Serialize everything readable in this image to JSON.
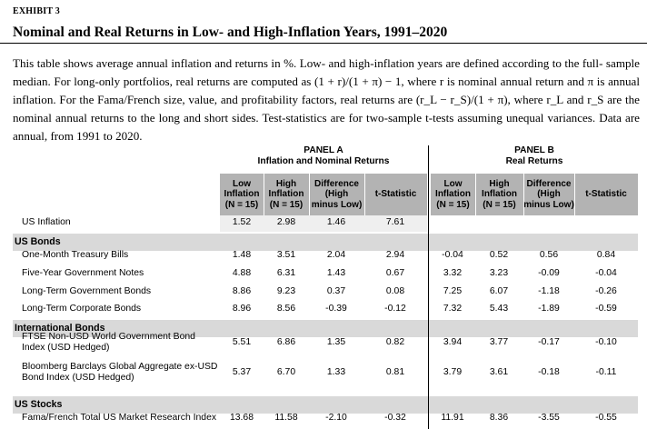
{
  "exhibit_label": "EXHIBIT 3",
  "title": "Nominal and Real Returns in Low- and High-Inflation Years, 1991–2020",
  "caption_lines": [
    "This table shows average annual inflation and returns in %. Low- and high-inflation years are defined according to the full-",
    "sample median. For long-only portfolios, real returns are computed as (1 + r)/(1 + π) − 1, where r is nominal annual",
    "return and π is annual inflation. For the Fama/French size, value, and profitability factors, real returns are (r_L − r_S)/(1 + π),",
    "where r_L and r_S are the nominal annual returns to the long and short sides. Test-statistics are for two-sample t-tests assuming",
    "unequal variances. Data are annual, from 1991 to 2020."
  ],
  "panel_a": {
    "label": "PANEL A",
    "subtitle": "Inflation and Nominal Returns"
  },
  "panel_b": {
    "label": "PANEL B",
    "subtitle": "Real Returns"
  },
  "columns_a": [
    "Low\nInflation\n(N = 15)",
    "High\nInflation\n(N = 15)",
    "Difference\n(High\nminus Low)",
    "t-Statistic"
  ],
  "columns_b": [
    "Low\nInflation\n(N = 15)",
    "High\nInflation\n(N = 15)",
    "Difference\n(High\nminus Low)",
    "t-Statistic"
  ],
  "us_inflation": {
    "label": "US Inflation",
    "values": [
      "1.52",
      "2.98",
      "1.46",
      "7.61"
    ]
  },
  "sections": [
    {
      "name": "US Bonds",
      "rows": [
        {
          "label": "One-Month Treasury Bills",
          "a": [
            "1.48",
            "3.51",
            "2.04",
            "2.94"
          ],
          "b": [
            "-0.04",
            "0.52",
            "0.56",
            "0.84"
          ]
        },
        {
          "label": "Five-Year Government Notes",
          "a": [
            "4.88",
            "6.31",
            "1.43",
            "0.67"
          ],
          "b": [
            "3.32",
            "3.23",
            "-0.09",
            "-0.04"
          ]
        },
        {
          "label": "Long-Term Government Bonds",
          "a": [
            "8.86",
            "9.23",
            "0.37",
            "0.08"
          ],
          "b": [
            "7.25",
            "6.07",
            "-1.18",
            "-0.26"
          ]
        },
        {
          "label": "Long-Term Corporate Bonds",
          "a": [
            "8.96",
            "8.56",
            "-0.39",
            "-0.12"
          ],
          "b": [
            "7.32",
            "5.43",
            "-1.89",
            "-0.59"
          ]
        }
      ]
    },
    {
      "name": "International Bonds",
      "rows": [
        {
          "label": "FTSE Non-USD World Government Bond\nIndex (USD Hedged)",
          "a": [
            "5.51",
            "6.86",
            "1.35",
            "0.82"
          ],
          "b": [
            "3.94",
            "3.77",
            "-0.17",
            "-0.10"
          ]
        },
        {
          "label": "Bloomberg Barclays Global Aggregate ex-USD\nBond Index (USD Hedged)",
          "a": [
            "5.37",
            "6.70",
            "1.33",
            "0.81"
          ],
          "b": [
            "3.79",
            "3.61",
            "-0.18",
            "-0.11"
          ]
        }
      ]
    },
    {
      "name": "US Stocks",
      "rows": [
        {
          "label": "Fama/French Total US Market Research Index",
          "a": [
            "13.68",
            "11.58",
            "-2.10",
            "-0.32"
          ],
          "b": [
            "11.91",
            "8.36",
            "-3.55",
            "-0.55"
          ]
        }
      ]
    }
  ]
}
